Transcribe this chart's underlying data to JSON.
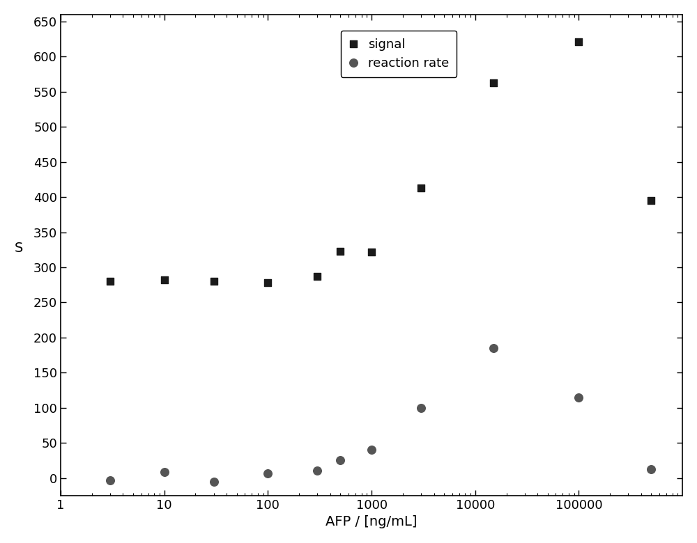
{
  "signal_points": [
    [
      3,
      280
    ],
    [
      10,
      282
    ],
    [
      30,
      280
    ],
    [
      100,
      278
    ],
    [
      300,
      287
    ],
    [
      500,
      323
    ],
    [
      1000,
      322
    ],
    [
      3000,
      413
    ],
    [
      15000,
      563
    ],
    [
      100000,
      621
    ],
    [
      500000,
      395
    ]
  ],
  "reaction_points": [
    [
      3,
      -3
    ],
    [
      10,
      8
    ],
    [
      30,
      -5
    ],
    [
      100,
      6
    ],
    [
      300,
      10
    ],
    [
      500,
      25
    ],
    [
      1000,
      40
    ],
    [
      3000,
      100
    ],
    [
      15000,
      185
    ],
    [
      100000,
      115
    ],
    [
      500000,
      12
    ]
  ],
  "xlabel": "AFP / [ng/mL]",
  "ylabel": "S",
  "xlim": [
    1,
    1000000
  ],
  "ylim": [
    -25,
    660
  ],
  "yticks": [
    0,
    50,
    100,
    150,
    200,
    250,
    300,
    350,
    400,
    450,
    500,
    550,
    600,
    650
  ],
  "xticks": [
    1,
    10,
    100,
    1000,
    10000,
    100000
  ],
  "xtick_labels": [
    "1",
    "10",
    "100",
    "1000",
    "10000",
    "100000"
  ],
  "legend_signal": "signal",
  "legend_reaction": "reaction rate",
  "signal_color": "#1a1a1a",
  "reaction_color": "#555555",
  "bg_color": "#ffffff",
  "signal_marker": "s",
  "reaction_marker": "o",
  "signal_marker_size": 55,
  "reaction_marker_size": 70,
  "figsize": [
    10.0,
    7.8
  ],
  "dpi": 100,
  "tick_labelsize": 13,
  "axis_labelsize": 14,
  "legend_fontsize": 13
}
